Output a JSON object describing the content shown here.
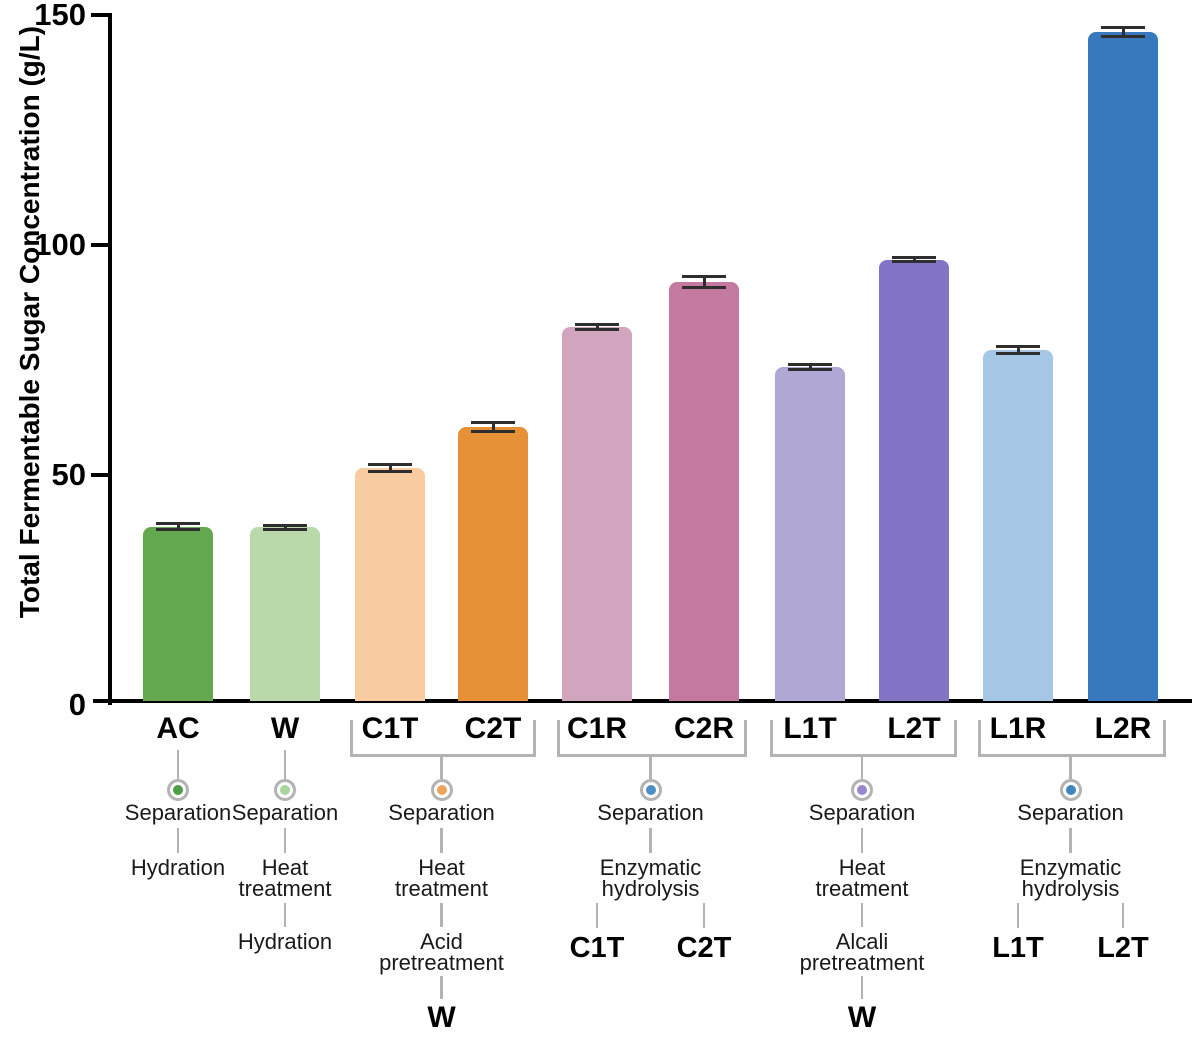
{
  "chart_data": {
    "type": "bar",
    "title": "",
    "xlabel": "",
    "ylabel": "Total Fermentable Sugar Concentration (g/L)",
    "ylim": [
      0,
      150
    ],
    "yticks": [
      0,
      50,
      100,
      150
    ],
    "grid": false,
    "legend": "none",
    "categories": [
      "AC",
      "W",
      "C1T",
      "C2T",
      "C1R",
      "C2R",
      "L1T",
      "L2T",
      "L1R",
      "L2R"
    ],
    "values": [
      38.8,
      38.6,
      51.5,
      60.4,
      82.2,
      92.0,
      73.5,
      96.8,
      77.2,
      146.3
    ],
    "errors": [
      0.7,
      0.4,
      0.8,
      1.0,
      0.5,
      1.2,
      0.6,
      0.4,
      0.7,
      1.0
    ],
    "bar_colors": [
      "#63a84e",
      "#b9d9ab",
      "#f8cba0",
      "#e69138",
      "#d2a5be",
      "#c47aa0",
      "#b1a7d5",
      "#8474c5",
      "#a5c6e5",
      "#3779bc"
    ]
  },
  "process_annotations": [
    {
      "bars": [
        "AC"
      ],
      "dot_color": "#4f9d45",
      "steps": [
        [
          "Separation"
        ],
        [
          "Hydration"
        ]
      ]
    },
    {
      "bars": [
        "W"
      ],
      "dot_color": "#a9d49c",
      "steps": [
        [
          "Separation"
        ],
        [
          "Heat",
          "treatment"
        ],
        [
          "Hydration"
        ]
      ]
    },
    {
      "bars": [
        "C1T",
        "C2T"
      ],
      "dot_color": "#eda35a",
      "steps": [
        [
          "Separation"
        ],
        [
          "Heat",
          "treatment"
        ],
        [
          "Acid",
          "pretreatment"
        ]
      ],
      "final_label": "W"
    },
    {
      "bars": [
        "C1R",
        "C2R"
      ],
      "dot_color": "#4d8fc4",
      "steps": [
        [
          "Separation"
        ],
        [
          "Enzymatic",
          "hydrolysis"
        ]
      ],
      "branch_labels": [
        "C1T",
        "C2T"
      ]
    },
    {
      "bars": [
        "L1T",
        "L2T"
      ],
      "dot_color": "#9b85cc",
      "steps": [
        [
          "Separation"
        ],
        [
          "Heat",
          "treatment"
        ],
        [
          "Alcali",
          "pretreatment"
        ]
      ],
      "final_label": "W"
    },
    {
      "bars": [
        "L1R",
        "L2R"
      ],
      "dot_color": "#3f86c0",
      "steps": [
        [
          "Separation"
        ],
        [
          "Enzymatic",
          "hydrolysis"
        ]
      ],
      "branch_labels": [
        "L1T",
        "L2T"
      ]
    }
  ],
  "style": {
    "connector_color": "#b3b3b3",
    "error_bar_color": "#2e2e2e",
    "axis_color": "#000000"
  }
}
